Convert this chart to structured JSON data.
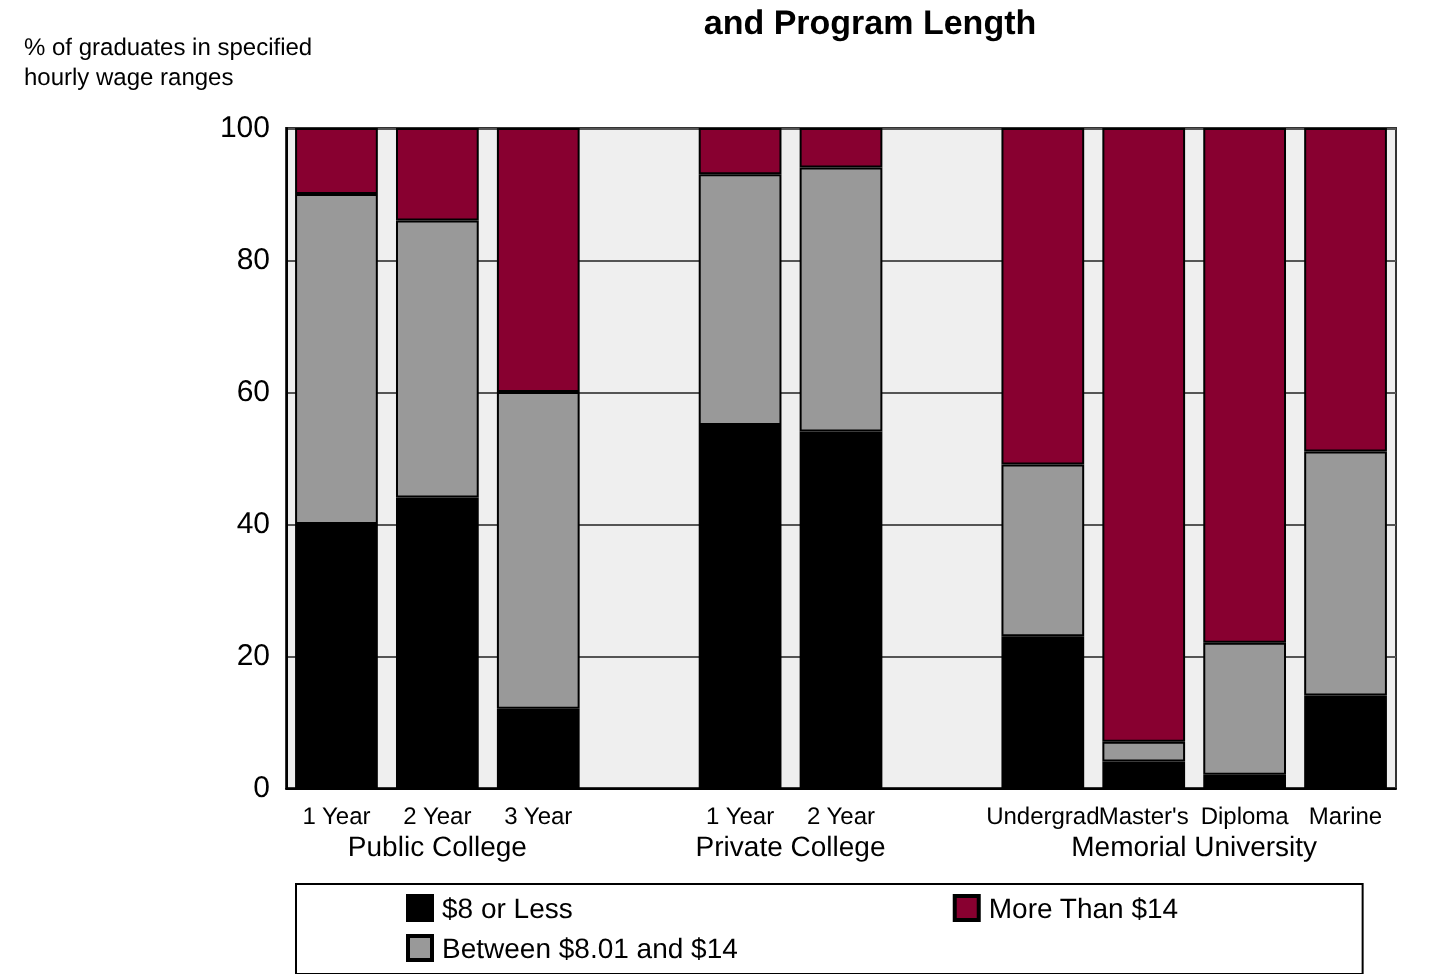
{
  "chart_data": {
    "type": "bar",
    "title": "and Program Length",
    "ylabel": "% of graduates in specified\nhourly wage ranges",
    "categories": [
      "1 Year",
      "2 Year",
      "3 Year",
      null,
      "1 Year",
      "2 Year",
      null,
      "Undergrad",
      "Master's",
      "Diploma",
      "Marine"
    ],
    "series": [
      {
        "name": "$8 or Less",
        "color": "#000000",
        "values": [
          40,
          44,
          12,
          null,
          55,
          54,
          null,
          23,
          4,
          2,
          14
        ]
      },
      {
        "name": "Between $8.01 and $14",
        "color": "#999999",
        "values": [
          50,
          42,
          48,
          null,
          38,
          40,
          null,
          26,
          3,
          20,
          37
        ]
      },
      {
        "name": "More Than $14",
        "color": "#880030",
        "values": [
          10,
          14,
          40,
          null,
          7,
          6,
          null,
          51,
          93,
          78,
          49
        ]
      }
    ],
    "annotations": [
      "Public College",
      "Private College",
      "Memorial University"
    ],
    "stacked": true,
    "ylim": [
      0,
      100
    ],
    "yticks": [
      0,
      20,
      40,
      60,
      80,
      100
    ],
    "grid": "y",
    "legend": "bottom"
  }
}
